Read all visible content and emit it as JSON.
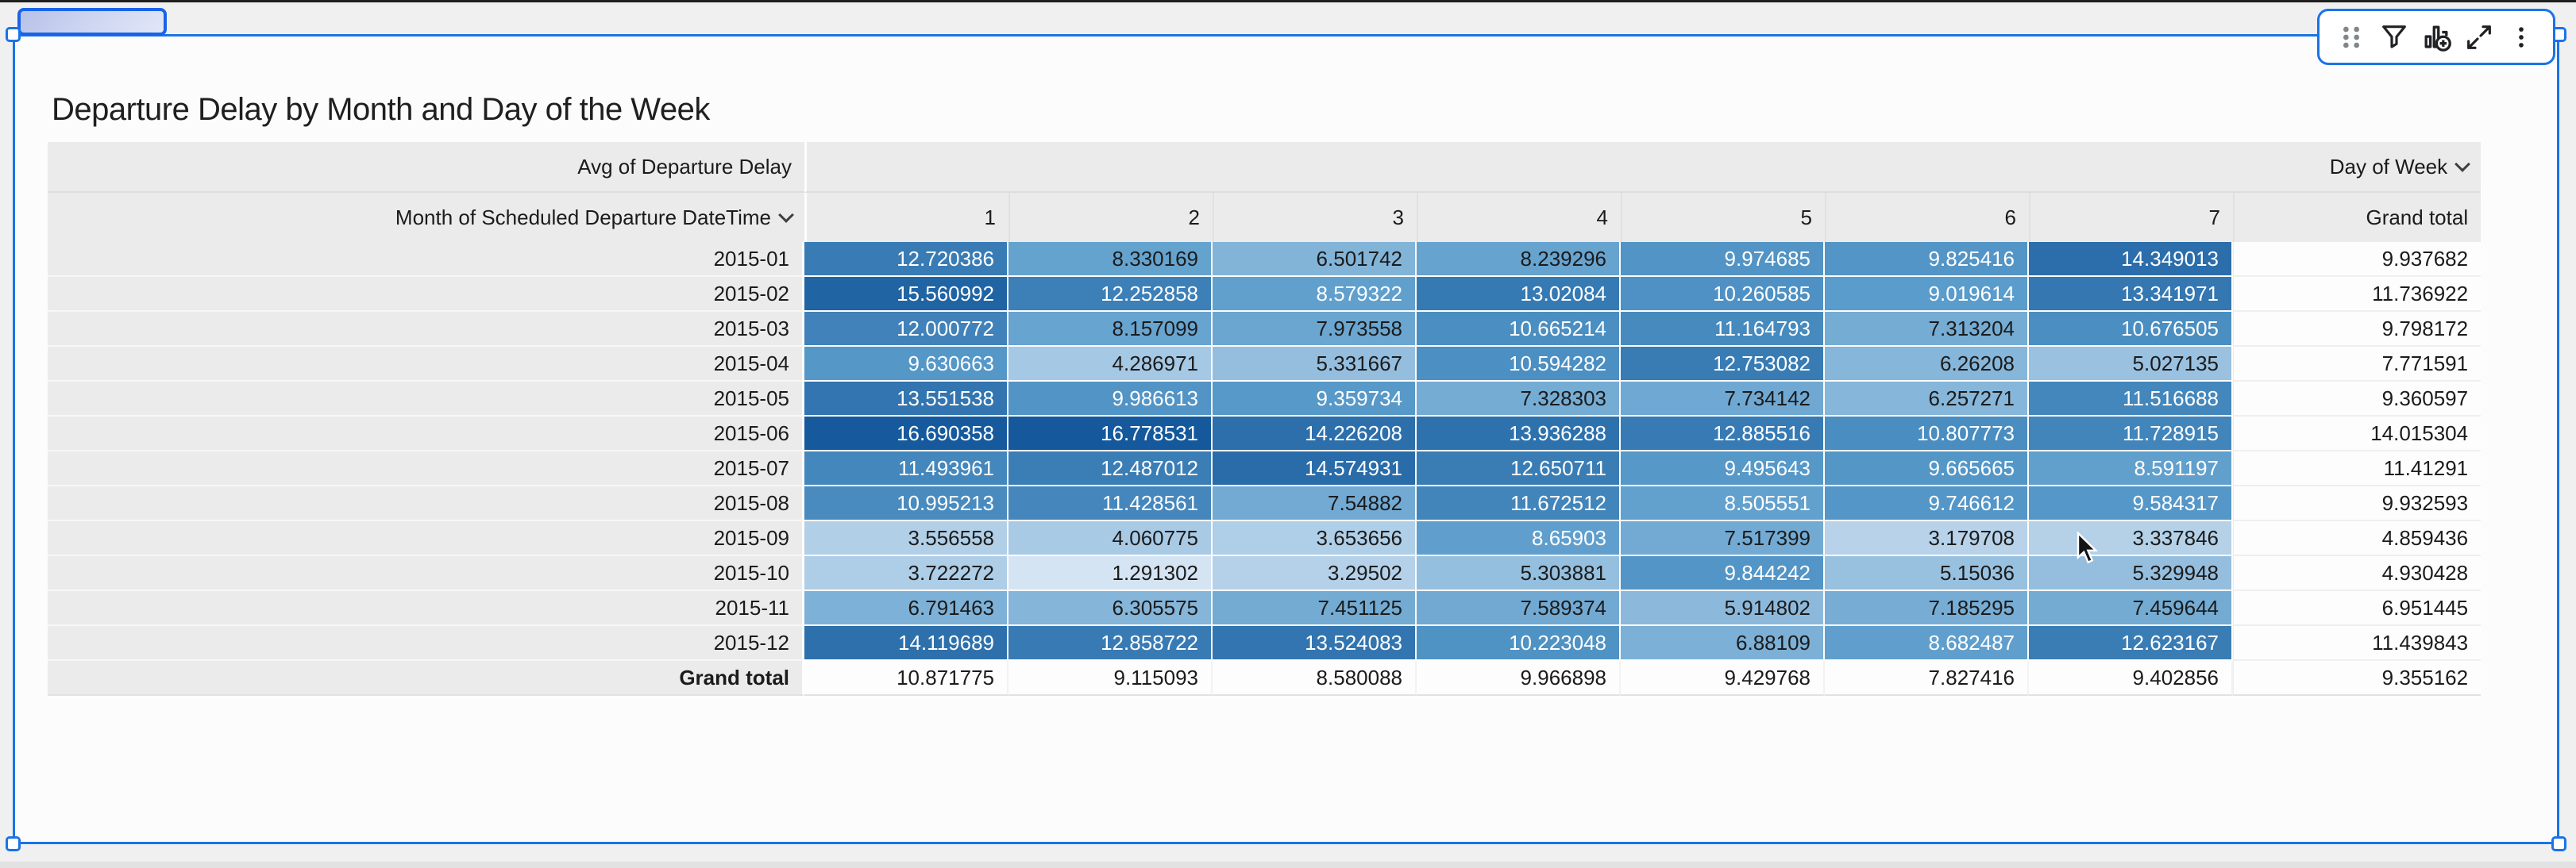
{
  "title": "Departure Delay by Month and Day of the Week",
  "toolbar": {
    "icons": [
      "drag-handle",
      "filter",
      "add-chart",
      "expand",
      "more-options"
    ]
  },
  "pivot": {
    "metric_label": "Avg of Departure Delay",
    "column_dimension": "Day of Week",
    "row_dimension": "Month of Scheduled Departure DateTime",
    "day_columns": [
      "1",
      "2",
      "3",
      "4",
      "5",
      "6",
      "7"
    ],
    "grand_total_label": "Grand total",
    "rows": [
      {
        "month": "2015-01",
        "values": [
          "12.720386",
          "8.330169",
          "6.501742",
          "8.239296",
          "9.974685",
          "9.825416",
          "14.349013"
        ],
        "total": "9.937682"
      },
      {
        "month": "2015-02",
        "values": [
          "15.560992",
          "12.252858",
          "8.579322",
          "13.02084",
          "10.260585",
          "9.019614",
          "13.341971"
        ],
        "total": "11.736922"
      },
      {
        "month": "2015-03",
        "values": [
          "12.000772",
          "8.157099",
          "7.973558",
          "10.665214",
          "11.164793",
          "7.313204",
          "10.676505"
        ],
        "total": "9.798172"
      },
      {
        "month": "2015-04",
        "values": [
          "9.630663",
          "4.286971",
          "5.331667",
          "10.594282",
          "12.753082",
          "6.26208",
          "5.027135"
        ],
        "total": "7.771591"
      },
      {
        "month": "2015-05",
        "values": [
          "13.551538",
          "9.986613",
          "9.359734",
          "7.328303",
          "7.734142",
          "6.257271",
          "11.516688"
        ],
        "total": "9.360597"
      },
      {
        "month": "2015-06",
        "values": [
          "16.690358",
          "16.778531",
          "14.226208",
          "13.936288",
          "12.885516",
          "10.807773",
          "11.728915"
        ],
        "total": "14.015304"
      },
      {
        "month": "2015-07",
        "values": [
          "11.493961",
          "12.487012",
          "14.574931",
          "12.650711",
          "9.495643",
          "9.665665",
          "8.591197"
        ],
        "total": "11.41291"
      },
      {
        "month": "2015-08",
        "values": [
          "10.995213",
          "11.428561",
          "7.54882",
          "11.672512",
          "8.505551",
          "9.746612",
          "9.584317"
        ],
        "total": "9.932593"
      },
      {
        "month": "2015-09",
        "values": [
          "3.556558",
          "4.060775",
          "3.653656",
          "8.65903",
          "7.517399",
          "3.179708",
          "3.337846"
        ],
        "total": "4.859436"
      },
      {
        "month": "2015-10",
        "values": [
          "3.722272",
          "1.291302",
          "3.29502",
          "5.303881",
          "9.844242",
          "5.15036",
          "5.329948"
        ],
        "total": "4.930428"
      },
      {
        "month": "2015-11",
        "values": [
          "6.791463",
          "6.305575",
          "7.451125",
          "7.589374",
          "5.914802",
          "7.185295",
          "7.459644"
        ],
        "total": "6.951445"
      },
      {
        "month": "2015-12",
        "values": [
          "14.119689",
          "12.858722",
          "13.524083",
          "10.223048",
          "6.88109",
          "8.682487",
          "12.623167"
        ],
        "total": "11.439843"
      }
    ],
    "column_totals": [
      "10.871775",
      "9.115093",
      "8.580088",
      "9.966898",
      "9.429768",
      "7.827416",
      "9.402856"
    ],
    "grand_total": "9.355162"
  },
  "heatmap": {
    "min": 1.291302,
    "max": 16.778531,
    "min_color": "#d5e4f3",
    "mid_color": "#5a9ccb",
    "max_color": "#15599c",
    "white_text_threshold": 0.46,
    "light_text_color": "#ffffff",
    "dark_text_color": "#1b1b1b"
  },
  "colors": {
    "selection_blue": "#1a73e8",
    "header_gray": "#ebebeb",
    "card_background": "#fcfcfc",
    "canvas_background": "#f0f0f1"
  }
}
